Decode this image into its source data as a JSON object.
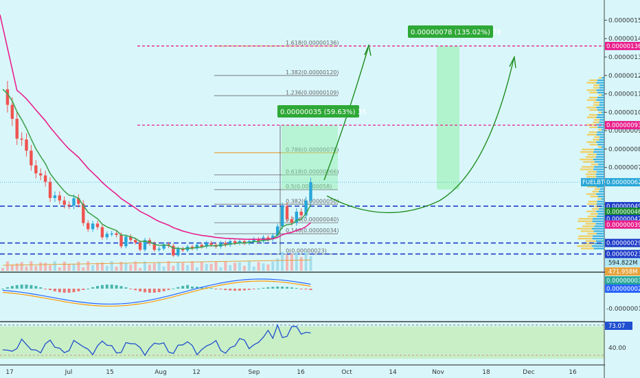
{
  "chart_data": {
    "type": "candlestick",
    "symbol": "FUELBTC",
    "current_price": "0.00000062",
    "x_ticks": [
      "17",
      "Jul",
      "15",
      "Aug",
      "12",
      "Sep",
      "16",
      "Oct",
      "14",
      "Nov",
      "18",
      "Dec",
      "16"
    ],
    "price_ticks": [
      "0.00000150",
      "0.00000140",
      "0.00000130",
      "0.00000120",
      "0.00000110",
      "0.00000100",
      "0.00000090",
      "0.00000080",
      "0.00000070",
      "0.00000050"
    ],
    "ylim": [
      1.8e-07,
      1.58e-06
    ],
    "axis_labels": [
      {
        "text": "0.00000136",
        "value": 1.36e-06,
        "color": "#e91e8c"
      },
      {
        "text": "0.00000093",
        "value": 9.3e-07,
        "color": "#e91e8c"
      },
      {
        "text": "FUELBTC",
        "value": 6.2e-07,
        "color": "#26a6d8"
      },
      {
        "text": "0.00000062",
        "value": 6.2e-07,
        "color": "#26a6d8"
      },
      {
        "text": "0.00000049",
        "value": 4.9e-07,
        "color": "#1e3cc8"
      },
      {
        "text": "0.00000046",
        "value": 4.6e-07,
        "color": "#14882e"
      },
      {
        "text": "0.00000042",
        "value": 4.2e-07,
        "color": "#1e3cc8"
      },
      {
        "text": "0.00000039",
        "value": 3.9e-07,
        "color": "#e91e8c"
      },
      {
        "text": "0.00000029",
        "value": 2.9e-07,
        "color": "#1e3cc8"
      },
      {
        "text": "0.00000023",
        "value": 2.3e-07,
        "color": "#1e3cc8"
      }
    ],
    "fib_levels": [
      {
        "label": "1.618(0.00000136)",
        "value": 1.36e-06,
        "color": "#e6a23c"
      },
      {
        "label": "1.382(0.00000120)",
        "value": 1.2e-06,
        "color": "#8d9196"
      },
      {
        "label": "1.236(0.00000109)",
        "value": 1.09e-06,
        "color": "#8d9196"
      },
      {
        "label": "0.786(0.00000078)",
        "value": 7.8e-07,
        "color": "#e6a23c"
      },
      {
        "label": "0.618(0.00000066)",
        "value": 6.6e-07,
        "color": "#8d9196"
      },
      {
        "label": "0.5(0.00000058)",
        "value": 5.8e-07,
        "color": "#8d9196"
      },
      {
        "label": "0.382(0.00000050)",
        "value": 5e-07,
        "color": "#8d9196"
      },
      {
        "label": "0.236(0.00000040)",
        "value": 4e-07,
        "color": "#8d9196"
      },
      {
        "label": "0.146(0.00000034)",
        "value": 3.4e-07,
        "color": "#8d9196"
      },
      {
        "label": "0(0.00000023)",
        "value": 2.3e-07,
        "color": "#8d9196"
      }
    ],
    "support_lines": [
      4.9e-07,
      2.9e-07,
      2.3e-07
    ],
    "resistance_lines": [
      1.36e-06,
      9.3e-07
    ],
    "callouts": [
      {
        "text": "0.00000078 (135.02%) 78"
      },
      {
        "text": "0.00000035 (59.63%) 35"
      }
    ],
    "volume": {
      "labels": [
        "594.822M",
        "471.958M"
      ]
    },
    "macd": {
      "labels": [
        "0.00000003",
        "0.00000002"
      ],
      "ticks": [
        "0.00000010"
      ]
    },
    "rsi": {
      "value": "73.07",
      "ticks": [
        "40.00"
      ]
    },
    "colors": {
      "background": "#d9f7fb",
      "up": "#26a6d8",
      "down": "#ef5350",
      "ema_fast": "#3fa34d",
      "ema_slow": "#e91e8c",
      "projection": "#1e8c1e",
      "callout_green": "#2ea836",
      "volume_profile_up": "#26a6d8",
      "volume_profile_down": "#f2c94c",
      "rsi_line": "#1f4fcf"
    }
  }
}
